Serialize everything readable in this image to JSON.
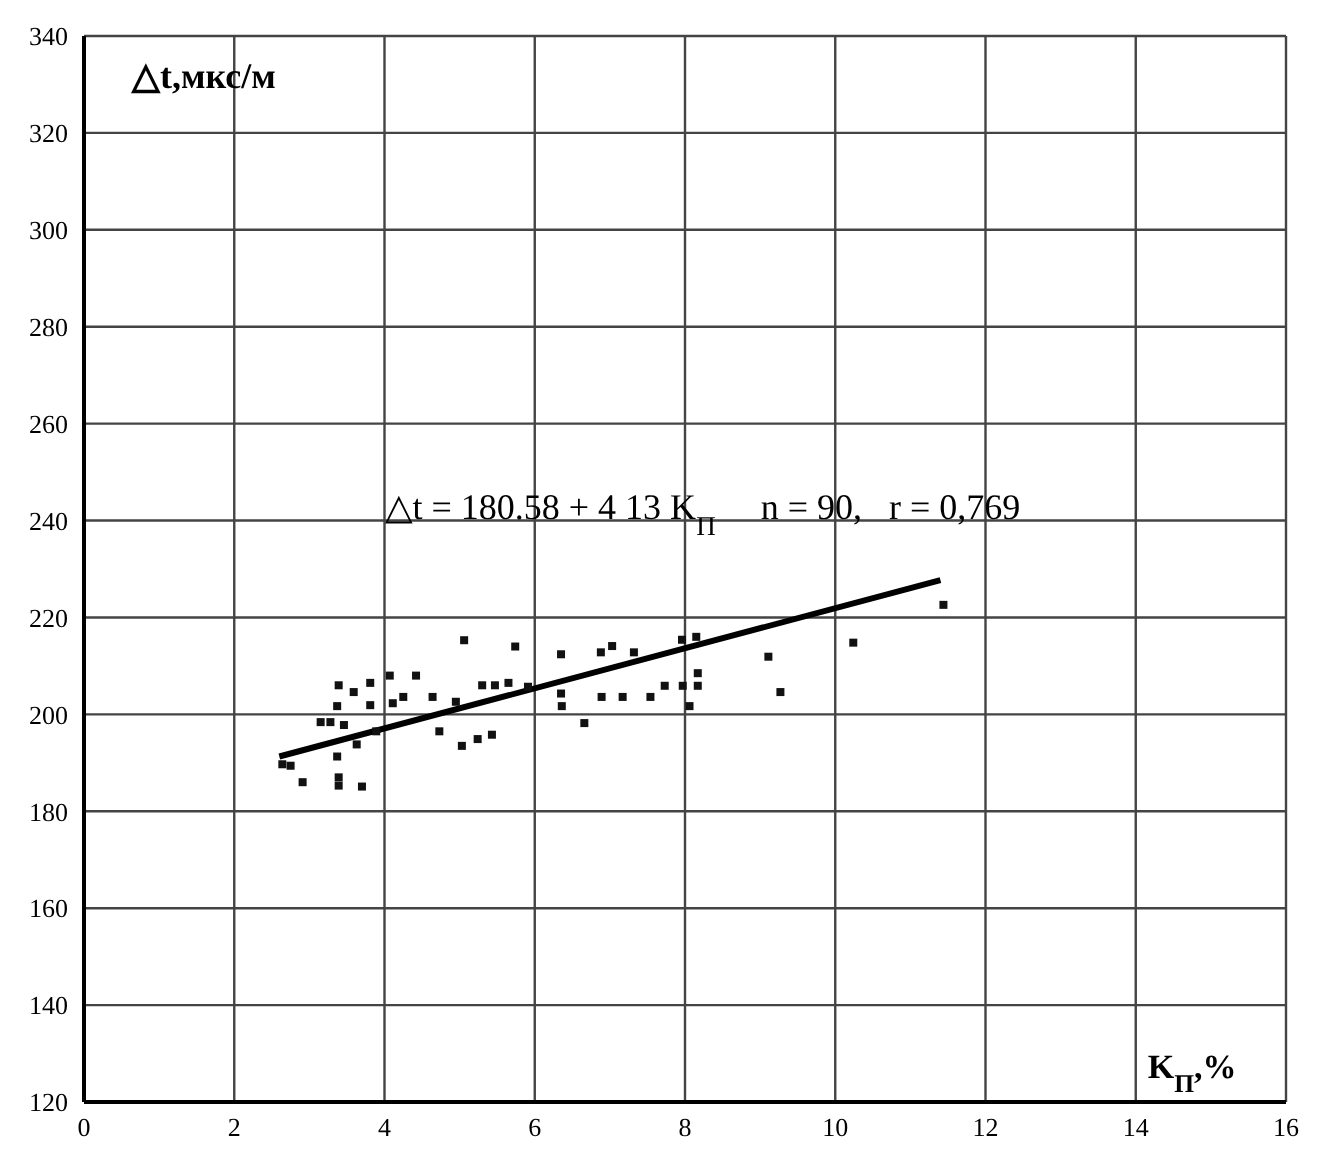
{
  "chart_data": {
    "type": "scatter",
    "xlabel": "K$_{П}$,%",
    "ylabel": "△t,мкс/м",
    "annotations": [
      "△t = 180.58 + 4 13 K$_{П}$     n = 90,   r = 0,769"
    ],
    "xlim": [
      0,
      16
    ],
    "xticks": [
      0,
      2,
      4,
      6,
      8,
      10,
      12,
      14,
      16
    ],
    "ylim": [
      120,
      340
    ],
    "yticks": [
      120,
      140,
      160,
      180,
      200,
      220,
      240,
      260,
      280,
      300,
      320,
      340
    ],
    "grid": true,
    "marker": "square",
    "legend": false,
    "series": [
      {
        "color": "#111111",
        "x": [
          5.06,
          5.74,
          6.35,
          6.88,
          4.42,
          3.39,
          3.59,
          3.81,
          4.07,
          4.25,
          4.64,
          4.95,
          5.3,
          5.47,
          5.65,
          5.91,
          6.35,
          3.37,
          3.81,
          4.11,
          3.15,
          3.28,
          3.46,
          4.73,
          6.36,
          6.66,
          5.03,
          5.24,
          5.43,
          2.64,
          2.75,
          2.91,
          3.37,
          3.39,
          3.39,
          3.7,
          3.89,
          3.63,
          7.03,
          7.32,
          7.96,
          8.15,
          6.89,
          7.17,
          7.54,
          7.73,
          7.97,
          8.17,
          8.17,
          8.06,
          9.11,
          9.27,
          10.24,
          11.44
        ],
        "values": [
          215.3,
          214,
          212.4,
          212.8,
          208,
          206,
          204.6,
          206.5,
          208,
          203.6,
          203.6,
          202.6,
          206,
          206,
          206.5,
          205.7,
          204.3,
          201.7,
          201.9,
          202.3,
          198.4,
          198.4,
          197.8,
          196.5,
          201.7,
          198.2,
          193.5,
          194.9,
          195.8,
          189.7,
          189.4,
          186,
          191.3,
          187,
          185.3,
          185.1,
          196.5,
          193.8,
          214.1,
          212.8,
          215.4,
          216,
          203.6,
          203.6,
          203.6,
          205.9,
          205.9,
          208.5,
          205.9,
          201.7,
          211.9,
          204.6,
          214.8,
          222.6
        ]
      },
      {
        "type": "line",
        "marker": "none",
        "color": "#000000",
        "x": [
          2.6,
          11.4
        ],
        "values": [
          191.3,
          227.7
        ]
      }
    ]
  }
}
